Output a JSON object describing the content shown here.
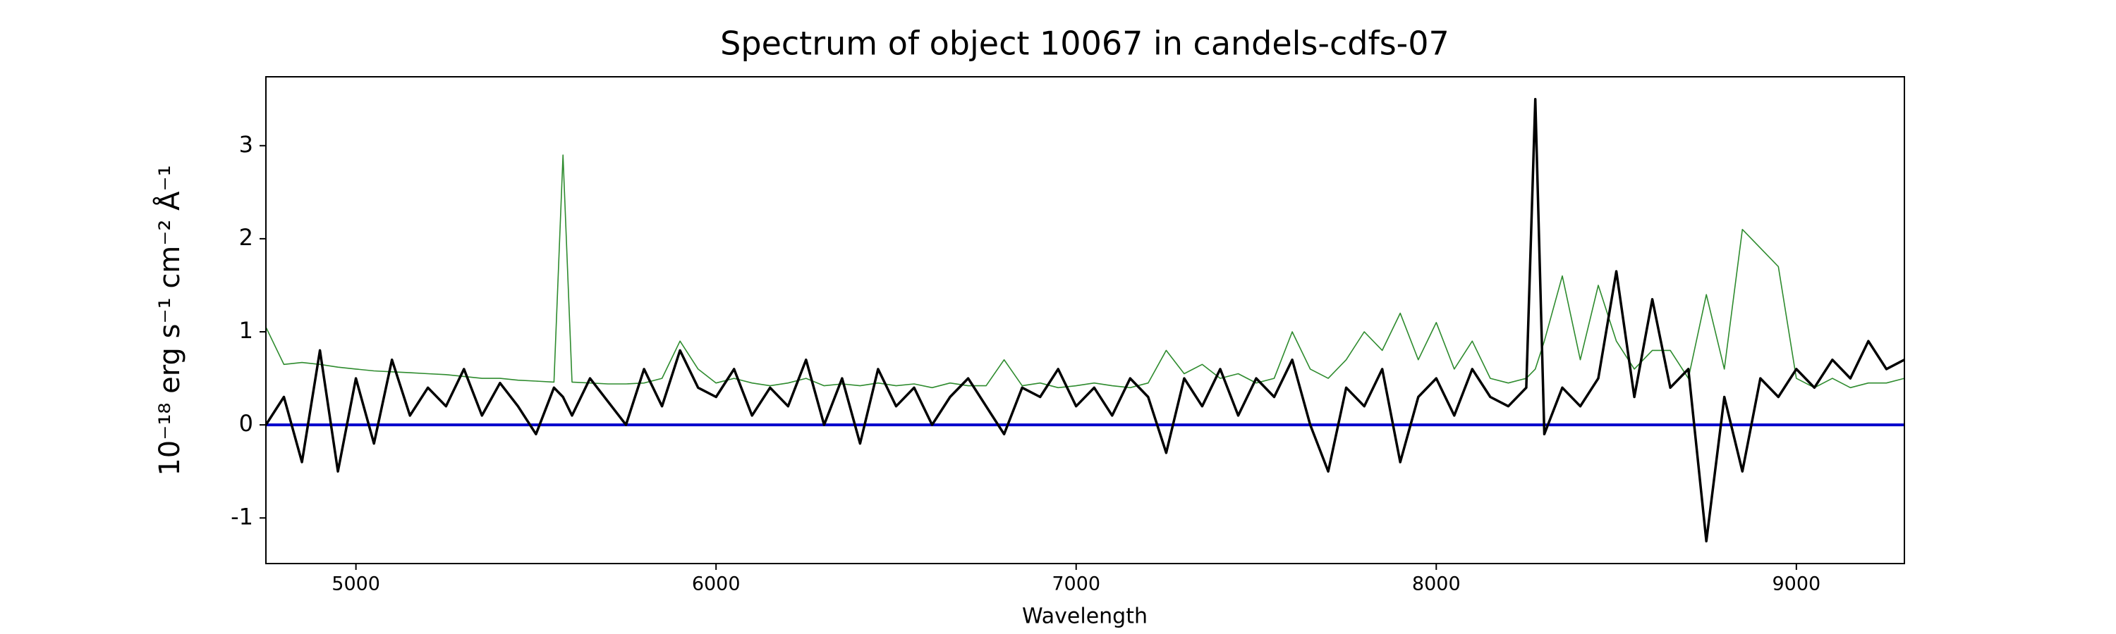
{
  "chart_data": {
    "type": "line",
    "title": "Spectrum of object 10067 in candels-cdfs-07",
    "xlabel": "Wavelength",
    "ylabel": "10⁻¹⁸ erg s⁻¹ cm⁻² Å⁻¹",
    "xlim": [
      4750,
      9300
    ],
    "ylim": [
      -1.49,
      3.74
    ],
    "xticks": [
      5000,
      6000,
      7000,
      8000,
      9000
    ],
    "yticks": [
      -1,
      0,
      1,
      2,
      3
    ],
    "x": [
      4750,
      4800,
      4850,
      4900,
      4950,
      5000,
      5050,
      5100,
      5150,
      5200,
      5250,
      5300,
      5350,
      5400,
      5450,
      5500,
      5550,
      5575,
      5600,
      5650,
      5700,
      5750,
      5800,
      5850,
      5900,
      5950,
      6000,
      6050,
      6100,
      6150,
      6200,
      6250,
      6300,
      6350,
      6400,
      6450,
      6500,
      6550,
      6600,
      6650,
      6700,
      6750,
      6800,
      6850,
      6900,
      6950,
      7000,
      7050,
      7100,
      7150,
      7200,
      7250,
      7300,
      7350,
      7400,
      7450,
      7500,
      7550,
      7600,
      7650,
      7700,
      7750,
      7800,
      7850,
      7900,
      7950,
      8000,
      8050,
      8100,
      8150,
      8200,
      8250,
      8275,
      8300,
      8350,
      8400,
      8450,
      8500,
      8550,
      8600,
      8650,
      8700,
      8750,
      8800,
      8850,
      8900,
      8950,
      9000,
      9050,
      9100,
      9150,
      9200,
      9250,
      9300
    ],
    "series": [
      {
        "color": "#2e8b2e",
        "width": 1.6,
        "values": [
          1.05,
          0.65,
          0.67,
          0.65,
          0.62,
          0.6,
          0.58,
          0.57,
          0.56,
          0.55,
          0.54,
          0.52,
          0.5,
          0.5,
          0.48,
          0.47,
          0.46,
          2.9,
          0.46,
          0.45,
          0.44,
          0.44,
          0.45,
          0.5,
          0.9,
          0.6,
          0.45,
          0.5,
          0.45,
          0.42,
          0.45,
          0.5,
          0.42,
          0.44,
          0.42,
          0.45,
          0.42,
          0.44,
          0.4,
          0.45,
          0.42,
          0.42,
          0.7,
          0.42,
          0.45,
          0.4,
          0.42,
          0.45,
          0.42,
          0.4,
          0.45,
          0.8,
          0.55,
          0.65,
          0.5,
          0.55,
          0.45,
          0.5,
          1.0,
          0.6,
          0.5,
          0.7,
          1.0,
          0.8,
          1.2,
          0.7,
          1.1,
          0.6,
          0.9,
          0.5,
          0.45,
          0.5,
          0.6,
          0.9,
          1.6,
          0.7,
          1.5,
          0.9,
          0.6,
          0.8,
          0.8,
          0.5,
          1.4,
          0.6,
          2.1,
          1.9,
          1.7,
          0.5,
          0.4,
          0.5,
          0.4,
          0.45,
          0.45,
          0.5
        ]
      },
      {
        "color": "#0000cc",
        "width": 4,
        "values": [
          0,
          0,
          0,
          0,
          0,
          0,
          0,
          0,
          0,
          0,
          0,
          0,
          0,
          0,
          0,
          0,
          0,
          0,
          0,
          0,
          0,
          0,
          0,
          0,
          0,
          0,
          0,
          0,
          0,
          0,
          0,
          0,
          0,
          0,
          0,
          0,
          0,
          0,
          0,
          0,
          0,
          0,
          0,
          0,
          0,
          0,
          0,
          0,
          0,
          0,
          0,
          0,
          0,
          0,
          0,
          0,
          0,
          0,
          0,
          0,
          0,
          0,
          0,
          0,
          0,
          0,
          0,
          0,
          0,
          0,
          0,
          0,
          0,
          0,
          0,
          0,
          0,
          0,
          0,
          0,
          0,
          0,
          0,
          0,
          0,
          0,
          0,
          0,
          0,
          0,
          0,
          0,
          0,
          0
        ]
      },
      {
        "color": "#000000",
        "width": 3.5,
        "values": [
          0.0,
          0.3,
          -0.4,
          0.8,
          -0.5,
          0.5,
          -0.2,
          0.7,
          0.1,
          0.4,
          0.2,
          0.6,
          0.1,
          0.45,
          0.2,
          -0.1,
          0.4,
          0.3,
          0.1,
          0.5,
          0.25,
          0.0,
          0.6,
          0.2,
          0.8,
          0.4,
          0.3,
          0.6,
          0.1,
          0.4,
          0.2,
          0.7,
          0.0,
          0.5,
          -0.2,
          0.6,
          0.2,
          0.4,
          0.0,
          0.3,
          0.5,
          0.2,
          -0.1,
          0.4,
          0.3,
          0.6,
          0.2,
          0.4,
          0.1,
          0.5,
          0.3,
          -0.3,
          0.5,
          0.2,
          0.6,
          0.1,
          0.5,
          0.3,
          0.7,
          0.0,
          -0.5,
          0.4,
          0.2,
          0.6,
          -0.4,
          0.3,
          0.5,
          0.1,
          0.6,
          0.3,
          0.2,
          0.4,
          3.5,
          -0.1,
          0.4,
          0.2,
          0.5,
          1.65,
          0.3,
          1.35,
          0.4,
          0.6,
          -1.25,
          0.3,
          -0.5,
          0.5,
          0.3,
          0.6,
          0.4,
          0.7,
          0.5,
          0.9,
          0.6,
          0.7
        ]
      }
    ]
  }
}
